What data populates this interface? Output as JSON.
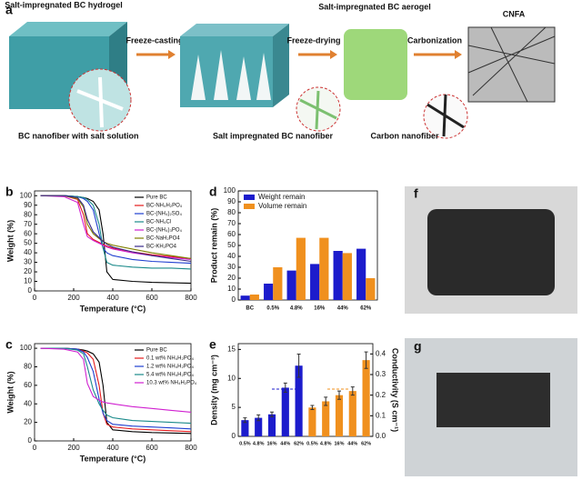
{
  "panel_a": {
    "label": "a",
    "hydrogel": "Salt-impregnated BC hydrogel",
    "step1": "Freeze-casting",
    "step2": "Freeze-drying",
    "aerogel": "Salt-impregnated BC aerogel",
    "step3": "Carbonization",
    "product": "CNFA",
    "zoom1": "BC nanofiber with salt solution",
    "zoom2": "Salt impregnated BC nanofiber",
    "zoom3": "Carbon nanofiber"
  },
  "panel_f": {
    "label": "f"
  },
  "panel_g": {
    "label": "g"
  },
  "chart_data": [
    {
      "type": "line",
      "panel": "b",
      "xlabel": "Temperature (°C)",
      "ylabel": "Weight (%)",
      "xlim": [
        0,
        800
      ],
      "xticks": [
        0,
        200,
        400,
        600,
        800
      ],
      "ylim": [
        0,
        105
      ],
      "yticks": [
        0,
        10,
        20,
        30,
        40,
        50,
        60,
        70,
        80,
        90,
        100
      ],
      "x": [
        30,
        150,
        220,
        250,
        270,
        300,
        330,
        350,
        370,
        400,
        500,
        600,
        700,
        800
      ],
      "series": [
        {
          "name": "Pure BC",
          "color": "#000000",
          "values": [
            100,
            100,
            99,
            98,
            97,
            94,
            85,
            60,
            20,
            12,
            10,
            9,
            8.5,
            8
          ]
        },
        {
          "name": "BC-NH₄H₂PO₄",
          "color": "#e41a1c",
          "values": [
            100,
            100,
            96,
            80,
            60,
            54,
            51,
            49,
            47,
            45,
            41,
            38,
            36,
            34
          ]
        },
        {
          "name": "BC-(NH₄)₂SO₄",
          "color": "#1f3fd0",
          "values": [
            100,
            100,
            99,
            97,
            94,
            85,
            60,
            45,
            40,
            37,
            33,
            31,
            30,
            29
          ]
        },
        {
          "name": "BC-NH₄Cl",
          "color": "#1a8a8a",
          "values": [
            100,
            100,
            99,
            98,
            96,
            90,
            70,
            45,
            30,
            27,
            25,
            24,
            24,
            23
          ]
        },
        {
          "name": "BC-(NH₄)₃PO₄",
          "color": "#d020d0",
          "values": [
            100,
            99,
            93,
            70,
            57,
            53,
            50,
            48,
            46,
            44,
            40,
            37,
            35,
            33
          ]
        },
        {
          "name": "BC-NaH₂PO4",
          "color": "#808000",
          "values": [
            100,
            100,
            97,
            88,
            70,
            60,
            55,
            52,
            50,
            48,
            44,
            40,
            37,
            34
          ]
        },
        {
          "name": "BC-KH₂PO4",
          "color": "#3a2a8a",
          "values": [
            100,
            100,
            98,
            90,
            75,
            62,
            56,
            52,
            49,
            46,
            41,
            37,
            34,
            31
          ]
        }
      ]
    },
    {
      "type": "line",
      "panel": "c",
      "xlabel": "Temperature (°C)",
      "ylabel": "Weight (%)",
      "xlim": [
        0,
        800
      ],
      "xticks": [
        0,
        200,
        400,
        600,
        800
      ],
      "ylim": [
        0,
        105
      ],
      "yticks": [
        0,
        20,
        40,
        60,
        80,
        100
      ],
      "x": [
        30,
        150,
        220,
        250,
        270,
        300,
        330,
        350,
        370,
        400,
        500,
        600,
        700,
        800
      ],
      "series": [
        {
          "name": "Pure BC",
          "color": "#000000",
          "values": [
            100,
            100,
            99,
            98,
            97,
            94,
            85,
            60,
            20,
            12,
            10,
            9,
            8.5,
            8
          ]
        },
        {
          "name": "0.1 wt% NH₄H₂PO₄",
          "color": "#e41a1c",
          "values": [
            100,
            100,
            99,
            97,
            95,
            88,
            60,
            30,
            18,
            15,
            13,
            12,
            11,
            10
          ]
        },
        {
          "name": "1.2 wt% NH₄H₂PO₄",
          "color": "#1f3fd0",
          "values": [
            100,
            100,
            99,
            96,
            90,
            75,
            45,
            30,
            22,
            18,
            16,
            15,
            14,
            13
          ]
        },
        {
          "name": "5.4 wt% NH₄H₂PO₄",
          "color": "#1a8a8a",
          "values": [
            100,
            100,
            98,
            94,
            80,
            55,
            40,
            33,
            28,
            25,
            22,
            21,
            20,
            19
          ]
        },
        {
          "name": "10.3 wt% NH₄H₂PO₄",
          "color": "#d020d0",
          "values": [
            100,
            99,
            96,
            88,
            62,
            48,
            44,
            42,
            41,
            40,
            37,
            35,
            33,
            31
          ]
        }
      ]
    },
    {
      "type": "bar",
      "panel": "d",
      "ylabel": "Product remain (%)",
      "ylim": [
        0,
        100
      ],
      "yticks": [
        0,
        10,
        20,
        30,
        40,
        50,
        60,
        70,
        80,
        90,
        100
      ],
      "categories": [
        "BC",
        "0.5%",
        "4.8%",
        "16%",
        "44%",
        "62%"
      ],
      "series": [
        {
          "name": "Weight remain",
          "color": "#1c1ccc",
          "values": [
            4,
            15,
            27,
            33,
            45,
            47
          ]
        },
        {
          "name": "Volume remain",
          "color": "#f0901e",
          "values": [
            5,
            30,
            57,
            57,
            43,
            20
          ]
        }
      ]
    },
    {
      "type": "errorbar",
      "panel": "e",
      "ylabel": "Density (mg cm⁻³)",
      "y2label": "Conductivity (S cm⁻¹)",
      "ylim": [
        0,
        16
      ],
      "yticks": [
        0,
        5,
        10,
        15
      ],
      "y2lim": [
        0,
        0.45
      ],
      "y2ticks": [
        {
          "value": 0,
          "label": "0.0"
        },
        0.1,
        0.2,
        0.3,
        0.4
      ],
      "series": [
        {
          "color": "#1c1ccc",
          "axis": "y",
          "categories": [
            "0.5%",
            "4.8%",
            "16%",
            "44%",
            "62%"
          ],
          "values": [
            2.8,
            3.2,
            3.8,
            8.4,
            12.2
          ],
          "errors": [
            0.4,
            0.5,
            0.4,
            0.8,
            2
          ]
        },
        {
          "color": "#f0901e",
          "axis": "y2",
          "categories": [
            "0.5%",
            "4.8%",
            "16%",
            "44%",
            "62%"
          ],
          "values": [
            0.14,
            0.17,
            0.2,
            0.22,
            0.37
          ],
          "errors": [
            0.01,
            0.02,
            0.02,
            0.02,
            0.04
          ]
        }
      ]
    }
  ]
}
